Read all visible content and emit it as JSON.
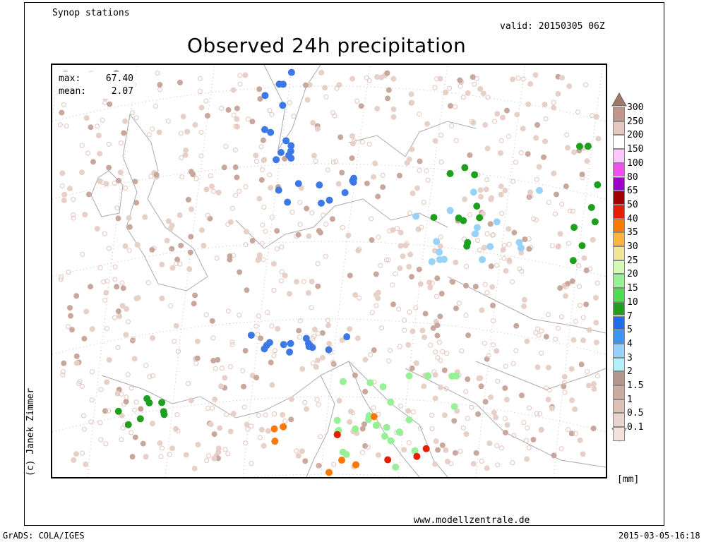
{
  "header": {
    "source_label": "Synop stations",
    "valid_label": "valid: 20150305 06Z",
    "title": "Observed 24h precipitation"
  },
  "stats": {
    "max_label": "max:",
    "max_value": "67.40",
    "mean_label": "mean:",
    "mean_value": "2.07"
  },
  "copyright": "(c) Janek Zimmer",
  "footer": {
    "website": "www.modellzentrale.de",
    "grads": "GrADS: COLA/IGES",
    "timestamp": "2015-03-05-16:18"
  },
  "legend": {
    "unit": "[mm]",
    "labels": [
      "300",
      "250",
      "200",
      "150",
      "100",
      "80",
      "65",
      "50",
      "40",
      "35",
      "30",
      "25",
      "20",
      "15",
      "10",
      "7",
      "5",
      "4",
      "3",
      "2",
      "1.5",
      "1",
      "0.5",
      "0.1"
    ],
    "colors": [
      "#c0968c",
      "#e6c8c0",
      "#ffffff",
      "#fcc8fc",
      "#f050f0",
      "#a000c8",
      "#a00000",
      "#e61e00",
      "#ff7800",
      "#ffb43c",
      "#f0e696",
      "#d2fab4",
      "#96f096",
      "#50dc50",
      "#1ea01e",
      "#1e6eeb",
      "#3c96f5",
      "#96d2fa",
      "#b4f0fa",
      "#b4968c",
      "#c8aca0",
      "#dcc0b4",
      "#e8d4cc",
      "#f0e2da"
    ]
  },
  "map": {
    "station_colors": {
      "trace": "#e6d0c8",
      "light": "#c8a89c",
      "empty": "#e3c4bc"
    },
    "clusters": [
      {
        "region": "norway-coast",
        "color": "#3c78e6",
        "n": 14
      },
      {
        "region": "germany-north",
        "color": "#3c78e6",
        "n": 10
      },
      {
        "region": "poland",
        "color": "#96d2fa",
        "n": 16
      },
      {
        "region": "poland-green",
        "color": "#1ea01e",
        "n": 10
      },
      {
        "region": "alps",
        "color": "#3c78e6",
        "n": 14
      },
      {
        "region": "italy-south",
        "color": "#96f096",
        "n": 24
      },
      {
        "region": "italy-orange",
        "color": "#ff7800",
        "n": 8
      },
      {
        "region": "italy-red",
        "color": "#e61e00",
        "n": 4
      },
      {
        "region": "spain-north",
        "color": "#1ea01e",
        "n": 8
      },
      {
        "region": "russia-east",
        "color": "#1ea01e",
        "n": 8
      }
    ]
  }
}
